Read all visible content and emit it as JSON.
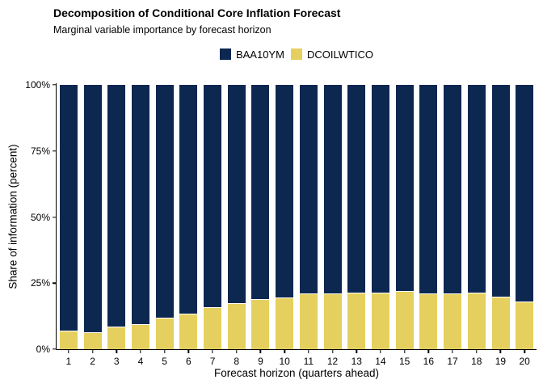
{
  "colors": {
    "baa10ym_navy": "#0d2850",
    "dcoilwtico_yellow": "#e5d05f",
    "axis": "#000000",
    "text": "#000000",
    "background": "#ffffff"
  },
  "chart_data": {
    "type": "bar",
    "stacked": true,
    "title": "Decomposition of Conditional Core Inflation Forecast",
    "subtitle": "Marginal variable importance by forecast horizon",
    "xlabel": "Forecast horizon (quarters ahead)",
    "ylabel": "Share of information (percent)",
    "categories": [
      "1",
      "2",
      "3",
      "4",
      "5",
      "6",
      "7",
      "8",
      "9",
      "10",
      "11",
      "12",
      "13",
      "14",
      "15",
      "16",
      "17",
      "18",
      "19",
      "20"
    ],
    "series": [
      {
        "name": "BAA10YM",
        "color": "#0d2850",
        "values": [
          93,
          93.5,
          91.5,
          90.5,
          88,
          86.5,
          84,
          82.5,
          81,
          80.5,
          79,
          79,
          78.5,
          78.5,
          78,
          79,
          79,
          78.5,
          80,
          82
        ]
      },
      {
        "name": "DCOILWTICO",
        "color": "#e5d05f",
        "values": [
          7,
          6.5,
          8.5,
          9.5,
          12,
          13.5,
          16,
          17.5,
          19,
          19.5,
          21,
          21,
          21.5,
          21.5,
          22,
          21,
          21,
          21.5,
          20,
          18
        ]
      }
    ],
    "ylim": [
      0,
      100
    ],
    "ytick_values": [
      0,
      25,
      50,
      75,
      100
    ],
    "ytick_labels": [
      "0%",
      "25%",
      "50%",
      "75%",
      "100%"
    ],
    "legend_position": "top",
    "grid": false
  }
}
